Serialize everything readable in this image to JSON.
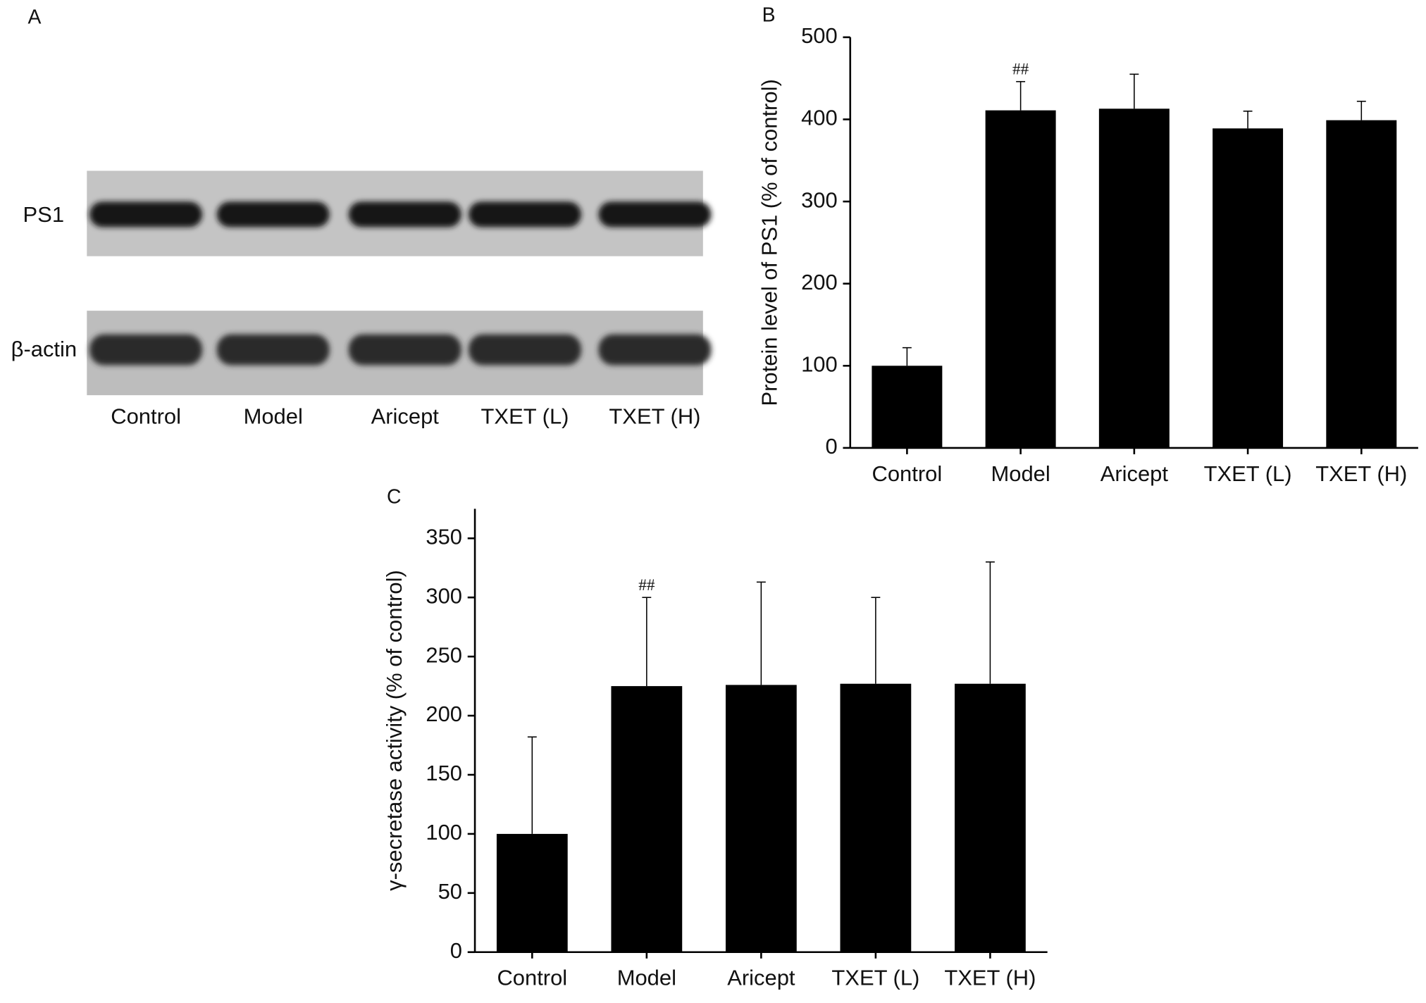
{
  "blot": {
    "panel_label": "A",
    "rows": [
      "PS1",
      "β-actin"
    ],
    "lanes": [
      "Control",
      "Model",
      "Aricept",
      "TXET (L)",
      "TXET (H)"
    ]
  },
  "chart_data": [
    {
      "type": "bar",
      "panel_label": "B",
      "y_label": "Protein level of PS1 (% of control)",
      "categories": [
        "Control",
        "Model",
        "Aricept",
        "TXET (L)",
        "TXET (H)"
      ],
      "values": [
        100,
        411,
        413,
        389,
        399
      ],
      "errors": [
        22,
        35,
        42,
        21,
        23
      ],
      "color": "#000000",
      "ylim": [
        0,
        500
      ],
      "yticks": [
        0,
        100,
        200,
        300,
        400,
        500
      ],
      "annotation": {
        "text": "##",
        "category": "Model"
      }
    },
    {
      "type": "bar",
      "panel_label": "C",
      "y_label": "γ-secretase activity (% of control)",
      "categories": [
        "Control",
        "Model",
        "Aricept",
        "TXET (L)",
        "TXET (H)"
      ],
      "values": [
        100,
        225,
        226,
        227,
        227
      ],
      "errors": [
        82,
        75,
        87,
        73,
        103
      ],
      "color": "#000000",
      "ylim": [
        0,
        375
      ],
      "yticks": [
        0,
        50,
        100,
        150,
        200,
        250,
        300,
        350
      ],
      "annotation": {
        "text": "##",
        "category": "Model"
      }
    }
  ]
}
